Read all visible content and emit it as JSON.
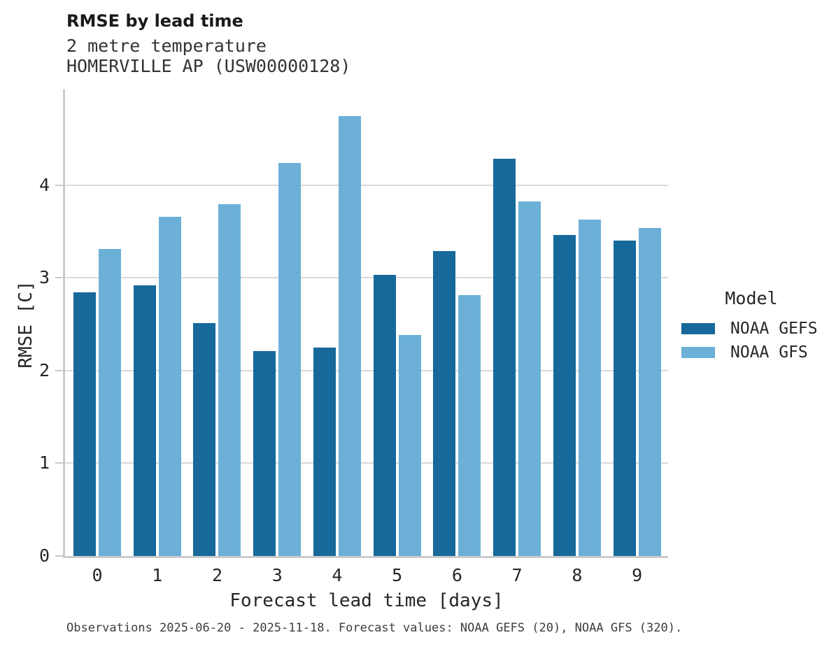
{
  "header": {
    "title": "RMSE by lead time",
    "subtitle1": "2 metre temperature",
    "subtitle2": "HOMERVILLE AP (USW00000128)"
  },
  "chart_data": {
    "type": "bar",
    "title": "RMSE by lead time",
    "subtitle": "2 metre temperature",
    "station": "HOMERVILLE AP (USW00000128)",
    "categories": [
      "0",
      "1",
      "2",
      "3",
      "4",
      "5",
      "6",
      "7",
      "8",
      "9"
    ],
    "series": [
      {
        "name": "NOAA GEFS",
        "color": "#17699B",
        "values": [
          2.84,
          2.92,
          2.51,
          2.21,
          2.25,
          3.03,
          3.29,
          4.28,
          3.46,
          3.4
        ]
      },
      {
        "name": "NOAA GFS",
        "color": "#6CB0D8",
        "values": [
          3.31,
          3.66,
          3.79,
          4.24,
          4.74,
          2.38,
          2.81,
          3.82,
          3.63,
          3.54
        ]
      }
    ],
    "xlabel": "Forecast lead time [days]",
    "ylabel": "RMSE [C]",
    "ylim": [
      0,
      5.03
    ],
    "yticks": [
      0,
      1,
      2,
      3,
      4
    ],
    "grid": true,
    "legend_title": "Model",
    "legend_position": "right"
  },
  "colors": {
    "gefs": "#17699B",
    "gfs": "#6CB0D8",
    "gridline": "#d9d9d9",
    "axis": "#cbcbcb"
  },
  "footer": {
    "note": "Observations 2025-06-20 - 2025-11-18. Forecast values: NOAA GEFS (20), NOAA GFS (320)."
  }
}
